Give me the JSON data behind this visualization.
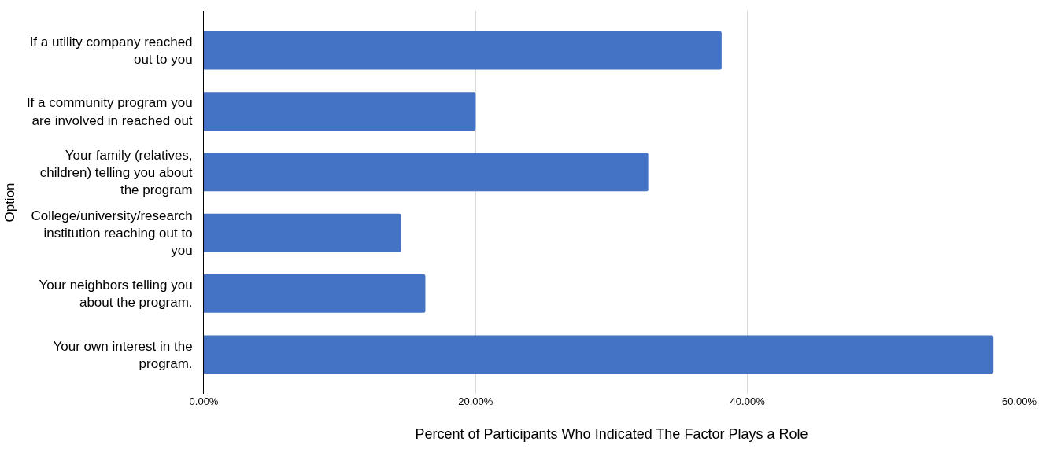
{
  "chart_data": {
    "type": "bar",
    "orientation": "horizontal",
    "xlabel": "Percent of Participants Who Indicated The Factor Plays a Role",
    "ylabel": "Option",
    "categories": [
      "If a utility company reached out to you",
      "If a community program you are involved in reached out",
      "Your family (relatives, children) telling you about the program",
      "College/university/research institution reaching out to you",
      "Your neighbors telling you about the program.",
      "Your own interest in the program."
    ],
    "values": [
      38.1,
      20.0,
      32.7,
      14.5,
      16.3,
      58.1
    ],
    "color": "#4472c4",
    "xlim": [
      0,
      60
    ],
    "xticks": [
      {
        "value": 0,
        "label": "0.00%"
      },
      {
        "value": 20,
        "label": "20.00%"
      },
      {
        "value": 40,
        "label": "40.00%"
      },
      {
        "value": 60,
        "label": "60.00%"
      }
    ],
    "grid": "x"
  }
}
